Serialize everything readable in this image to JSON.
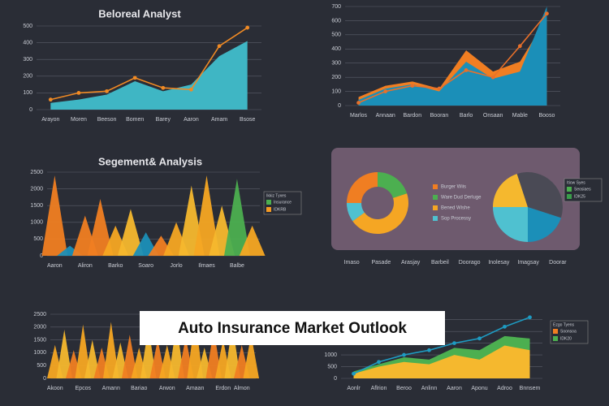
{
  "banner": "Auto Insurance Market Outlook",
  "chart_data": [
    {
      "type": "line-area",
      "title": "Beloreal Analyst",
      "categories": [
        "Arayon",
        "Moren",
        "Beeson",
        "Bomen",
        "Barey",
        "Aaron",
        "Amam",
        "Bsose"
      ],
      "ylim": [
        0,
        500
      ],
      "yticks": [
        0,
        100,
        200,
        300,
        400,
        500
      ],
      "grid": true,
      "series": [
        {
          "type": "area",
          "color": "#3fb6c4",
          "values": [
            40,
            60,
            90,
            170,
            110,
            150,
            320,
            410
          ]
        },
        {
          "type": "line",
          "color": "#f08a24",
          "values": [
            60,
            100,
            110,
            190,
            130,
            120,
            380,
            490
          ]
        }
      ]
    },
    {
      "type": "line-area",
      "categories": [
        "Marlos",
        "Annaan",
        "Bardon",
        "Booran",
        "Barlo",
        "Onsaan",
        "Mable",
        "Booso"
      ],
      "ylim": [
        0,
        700
      ],
      "yticks": [
        0,
        100,
        200,
        300,
        400,
        500,
        600,
        700
      ],
      "grid": true,
      "series": [
        {
          "type": "area",
          "color": "#f07e22",
          "values": [
            60,
            140,
            170,
            120,
            390,
            240,
            310,
            620
          ]
        },
        {
          "type": "area",
          "color": "#1b8fb8",
          "values": [
            40,
            120,
            150,
            100,
            310,
            190,
            240,
            700
          ]
        },
        {
          "type": "line",
          "color": "#e8702a",
          "values": [
            20,
            100,
            140,
            120,
            250,
            200,
            420,
            650
          ]
        }
      ]
    },
    {
      "type": "peaks",
      "title": "Segement& Analysis",
      "categories": [
        "Aaron",
        null,
        "Aliron",
        null,
        "Barko",
        null,
        "Soaro",
        null,
        "Jorlo",
        null,
        "Ilmaes",
        null,
        "Balbe",
        null
      ],
      "ylim": [
        0,
        2500
      ],
      "yticks": [
        0,
        500,
        1000,
        1500,
        2000,
        2500
      ],
      "grid": true,
      "values": [
        2400,
        300,
        1200,
        1700,
        900,
        1400,
        700,
        600,
        1000,
        2100,
        2400,
        1500,
        2300,
        900
      ],
      "colors": [
        "#f07e22",
        "#1b8fb8",
        "#f07e22",
        "#f07e22",
        "#f5a623",
        "#f5b82e",
        "#1b8fb8",
        "#f07e22",
        "#f5a623",
        "#f5b82e",
        "#f5a623",
        "#f5b82e",
        "#4caf50",
        "#f5a623"
      ],
      "legend": {
        "title": "Ikkiz Tyxes",
        "items": [
          {
            "label": "Insurance",
            "color": "#4caf50"
          },
          {
            "label": "IDKRB",
            "color": "#f59a23"
          }
        ]
      }
    },
    {
      "type": "pie",
      "categories": [
        "Imaso",
        "Pasade",
        "Arasjay",
        "Barbeil",
        "Doorago",
        "Inolesay",
        "Imagsay",
        "Doorar"
      ],
      "donut": {
        "values": [
          25,
          20,
          45,
          10
        ],
        "colors": [
          "#f07e22",
          "#4caf50",
          "#f5a623",
          "#4fc1d0"
        ],
        "labels": [
          "Burger Wiis",
          "Ware Dud Derluge",
          "Bened Wishe",
          "Sop Processy"
        ]
      },
      "pie": {
        "values": [
          20,
          35,
          20,
          25
        ],
        "colors": [
          "#f5b82e",
          "#4a4a55",
          "#1b8fb8",
          "#4fc1d0"
        ]
      },
      "legend": {
        "title": "Itiow Syes",
        "items": [
          {
            "label": "Seosiaes",
            "color": "#4caf50"
          },
          {
            "label": "IDK25",
            "color": "#3a9d4a"
          }
        ]
      }
    },
    {
      "type": "peaks",
      "categories": [
        "Akoon",
        null,
        null,
        "Epcos",
        null,
        null,
        "Amann",
        null,
        null,
        "Bariao",
        null,
        null,
        "Arwon",
        null,
        null,
        "Amaan",
        null,
        null,
        "Erdon",
        null,
        "Almon",
        null
      ],
      "ylim": [
        0,
        2500
      ],
      "yticks": [
        0,
        500,
        1000,
        1500,
        2000,
        2500
      ],
      "grid": true,
      "values": [
        1300,
        1900,
        1100,
        2100,
        1500,
        1200,
        2200,
        1400,
        1700,
        1200,
        2000,
        1500,
        1300,
        2100,
        1600,
        2400,
        1200,
        1900,
        1500,
        2100,
        1300,
        1700
      ],
      "colors": [
        "#f5a623",
        "#f5b82e",
        "#f07e22",
        "#f5a623",
        "#f5b82e",
        "#f07e22",
        "#f5a623",
        "#f5b82e",
        "#f07e22",
        "#f5a623",
        "#f5b82e",
        "#f07e22",
        "#f5a623",
        "#f5b82e",
        "#f07e22",
        "#f5a623",
        "#f5b82e",
        "#f07e22",
        "#f5a623",
        "#f5b82e",
        "#f07e22",
        "#f5a623"
      ]
    },
    {
      "type": "line-area",
      "categories": [
        "Aonlr",
        "Aflrion",
        "Beroo",
        "Anlinn",
        "Aaron",
        "Aponu",
        "Adroo",
        "Bnnsem"
      ],
      "ylim": [
        0,
        2800
      ],
      "yticks": [
        0,
        500,
        1000,
        1500,
        2000,
        2500
      ],
      "grid": true,
      "series": [
        {
          "type": "area",
          "color": "#4caf50",
          "values": [
            300,
            600,
            900,
            800,
            1300,
            1200,
            1800,
            1700
          ]
        },
        {
          "type": "area",
          "color": "#f5b82e",
          "values": [
            200,
            500,
            700,
            600,
            1000,
            800,
            1400,
            1200
          ]
        },
        {
          "type": "line",
          "color": "#1e9bc2",
          "values": [
            200,
            700,
            1000,
            1200,
            1500,
            1700,
            2200,
            2600
          ]
        }
      ],
      "legend": {
        "title": "Ezgo Tyens",
        "items": [
          {
            "label": "Soonsoa",
            "color": "#f07e22"
          },
          {
            "label": "IDK20",
            "color": "#4caf50"
          }
        ]
      }
    }
  ]
}
